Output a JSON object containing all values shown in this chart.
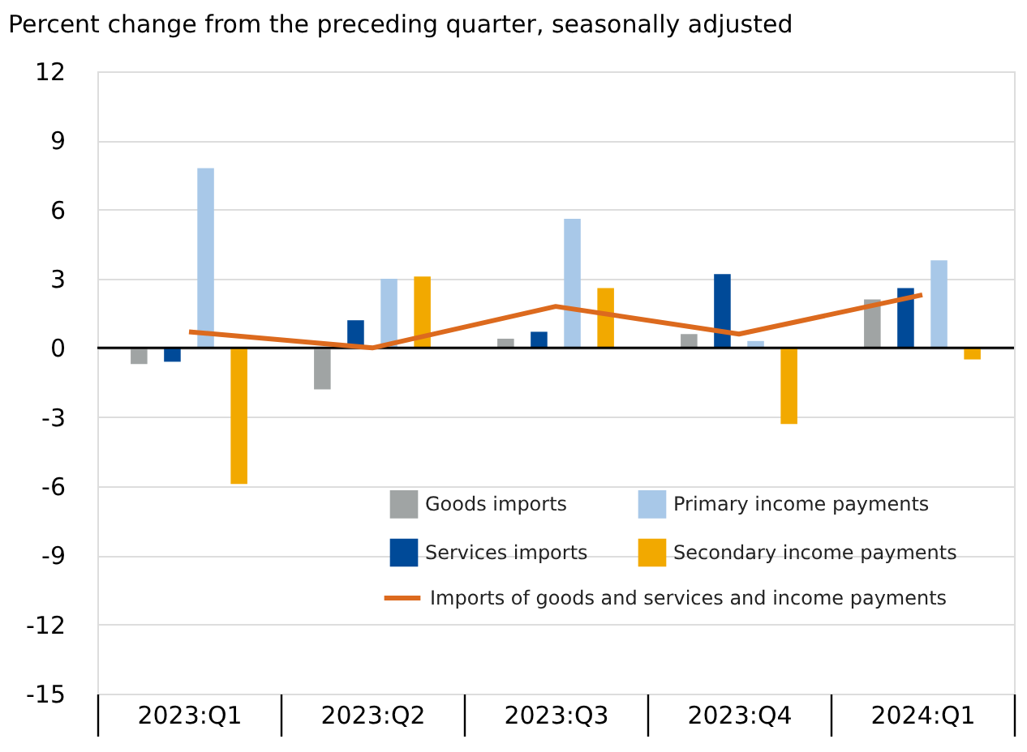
{
  "chart_data": {
    "type": "bar",
    "ylabel": "Percent change from the preceding quarter, seasonally adjusted",
    "categories": [
      "2023:Q1",
      "2023:Q2",
      "2023:Q3",
      "2023:Q4",
      "2024:Q1"
    ],
    "series": [
      {
        "name": "Goods imports",
        "color": "#a0a4a4",
        "values": [
          -0.7,
          -1.8,
          0.4,
          0.6,
          2.1
        ]
      },
      {
        "name": "Services imports",
        "color": "#004a98",
        "values": [
          -0.6,
          1.2,
          0.7,
          3.2,
          2.6
        ]
      },
      {
        "name": "Primary income payments",
        "color": "#a8c8e8",
        "values": [
          7.8,
          3.0,
          5.6,
          0.3,
          3.8
        ]
      },
      {
        "name": "Secondary income payments",
        "color": "#f2a900",
        "values": [
          -5.9,
          3.1,
          2.6,
          -3.3,
          -0.5
        ]
      },
      {
        "name": "Imports of goods and services and income payments",
        "type": "line",
        "color": "#dc6a1e",
        "values": [
          0.7,
          0.0,
          1.8,
          0.6,
          2.3
        ]
      }
    ],
    "ylim": [
      -15,
      12
    ],
    "yticks": [
      -15,
      -12,
      -9,
      -6,
      -3,
      0,
      3,
      6,
      9,
      12
    ],
    "ref_lines": [
      {
        "axis": "y",
        "value": 0,
        "color": "#000000"
      }
    ],
    "grid": "y",
    "legend": "bottom right"
  }
}
